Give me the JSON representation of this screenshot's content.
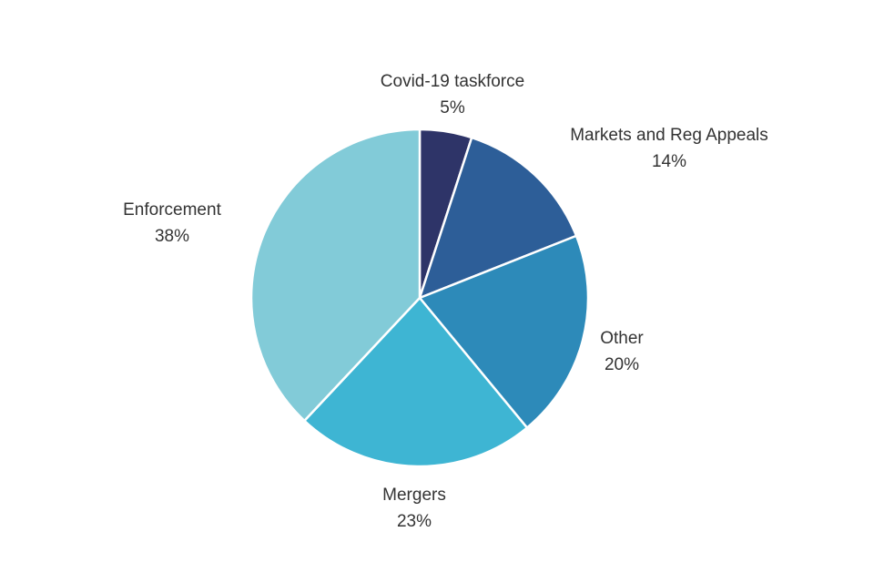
{
  "chart_data": {
    "type": "pie",
    "title": "",
    "slices": [
      {
        "label": "Covid-19 taskforce",
        "value": 5,
        "value_label": "5%",
        "color": "#2e3468"
      },
      {
        "label": "Markets and Reg Appeals",
        "value": 14,
        "value_label": "14%",
        "color": "#2d5e98"
      },
      {
        "label": "Other",
        "value": 20,
        "value_label": "20%",
        "color": "#2d8ab9"
      },
      {
        "label": "Mergers",
        "value": 23,
        "value_label": "23%",
        "color": "#3eb5d3"
      },
      {
        "label": "Enforcement",
        "value": 38,
        "value_label": "38%",
        "color": "#82cbd8"
      }
    ],
    "start_angle_deg": 0,
    "direction": "clockwise",
    "slice_border_color": "#ffffff",
    "legend": "none"
  }
}
